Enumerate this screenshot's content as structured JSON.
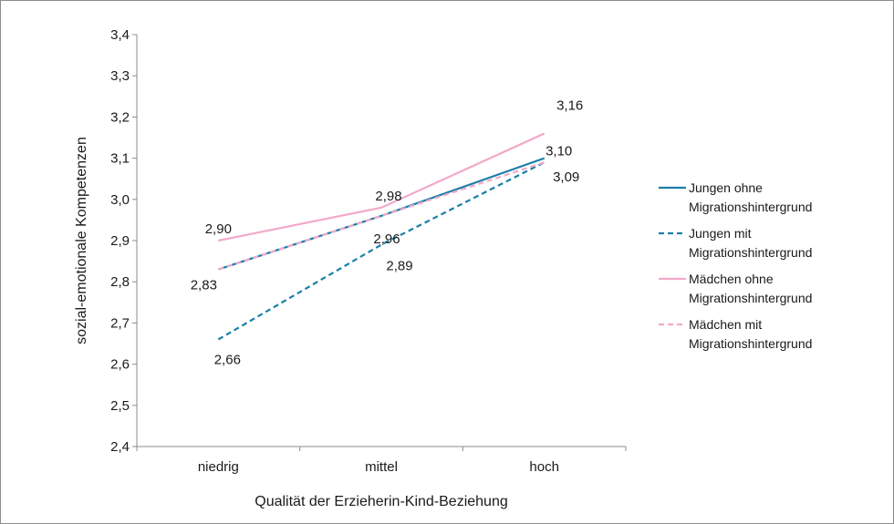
{
  "chart_data": {
    "type": "line",
    "categories": [
      "niedrig",
      "mittel",
      "hoch"
    ],
    "xlabel": "Qualität der Erzieherin-Kind-Beziehung",
    "ylabel": "sozial-emotionale Kompetenzen",
    "ylim": [
      2.4,
      3.4
    ],
    "yticks": [
      "2,4",
      "2,5",
      "2,6",
      "2,7",
      "2,8",
      "2,9",
      "3,0",
      "3,1",
      "3,2",
      "3,3",
      "3,4"
    ],
    "grid": false,
    "legend_position": "right",
    "series": [
      {
        "name_lines": [
          "Jungen ohne",
          "Migrationshintergrund"
        ],
        "values": [
          2.83,
          2.96,
          3.1
        ],
        "color": "#1a7fa8",
        "dashed": false,
        "labels": [
          "",
          "",
          "3,10"
        ]
      },
      {
        "name_lines": [
          "Jungen mit",
          "Migrationshintergrund"
        ],
        "values": [
          2.66,
          2.89,
          3.09
        ],
        "color": "#1a7fa8",
        "dashed": true,
        "labels": [
          "2,66",
          "2,89",
          "3,09"
        ]
      },
      {
        "name_lines": [
          "Mädchen ohne",
          "Migrationshintergrund"
        ],
        "values": [
          2.9,
          2.98,
          3.16
        ],
        "color": "#f2a9c9",
        "dashed": false,
        "labels": [
          "2,90",
          "2,98",
          "3,16"
        ]
      },
      {
        "name_lines": [
          "Mädchen mit",
          "Migrationshintergrund"
        ],
        "values": [
          2.83,
          2.96,
          3.09
        ],
        "color": "#f2a9c9",
        "dashed": true,
        "labels": [
          "2,83",
          "2,96",
          ""
        ]
      }
    ]
  }
}
